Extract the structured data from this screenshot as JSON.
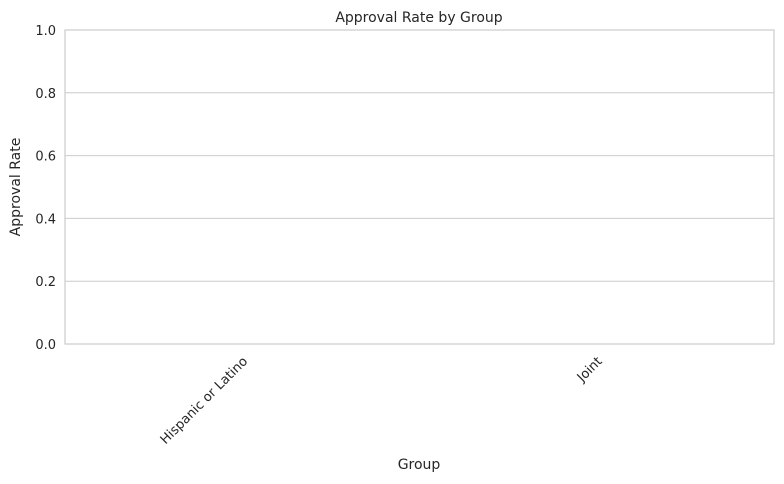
{
  "chart_data": {
    "type": "bar",
    "title": "Approval Rate by Group",
    "xlabel": "Group",
    "ylabel": "Approval Rate",
    "categories": [
      "Hispanic or Latino",
      "Joint"
    ],
    "values": [
      0,
      0
    ],
    "ylim": [
      0,
      1
    ],
    "yticks": [
      "0.0",
      "0.2",
      "0.4",
      "0.6",
      "0.8",
      "1.0"
    ],
    "grid": true,
    "colors": {
      "grid": "#cccccc",
      "frame": "#cccccc",
      "text": "#262626",
      "bar": "#4c72b0"
    }
  }
}
